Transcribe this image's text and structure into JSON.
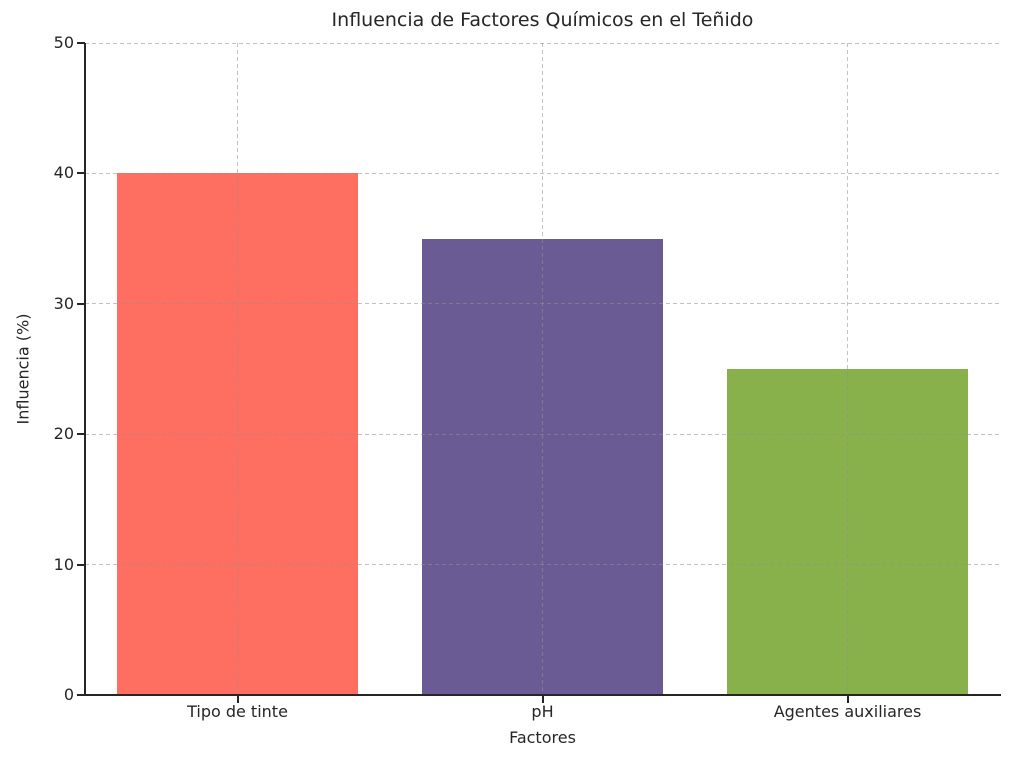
{
  "figure": {
    "background": "#ffffff",
    "text_color": "#262626",
    "spine_color": "#262626",
    "grid_style": "dashed, drawn over bars, both axes"
  },
  "chart_data": {
    "type": "bar",
    "title": "Influencia de Factores Químicos en el Teñido",
    "xlabel": "Factores",
    "ylabel": "Influencia (%)",
    "categories": [
      "Tipo de tinte",
      "pH",
      "Agentes auxiliares"
    ],
    "values": [
      40,
      35,
      25
    ],
    "bar_colors": [
      "#FF6F61",
      "#6B5B95",
      "#88B04B"
    ],
    "ylim": [
      0,
      50
    ],
    "yticks": [
      0,
      10,
      20,
      30,
      40,
      50
    ],
    "grid": "on",
    "legend": "none"
  }
}
